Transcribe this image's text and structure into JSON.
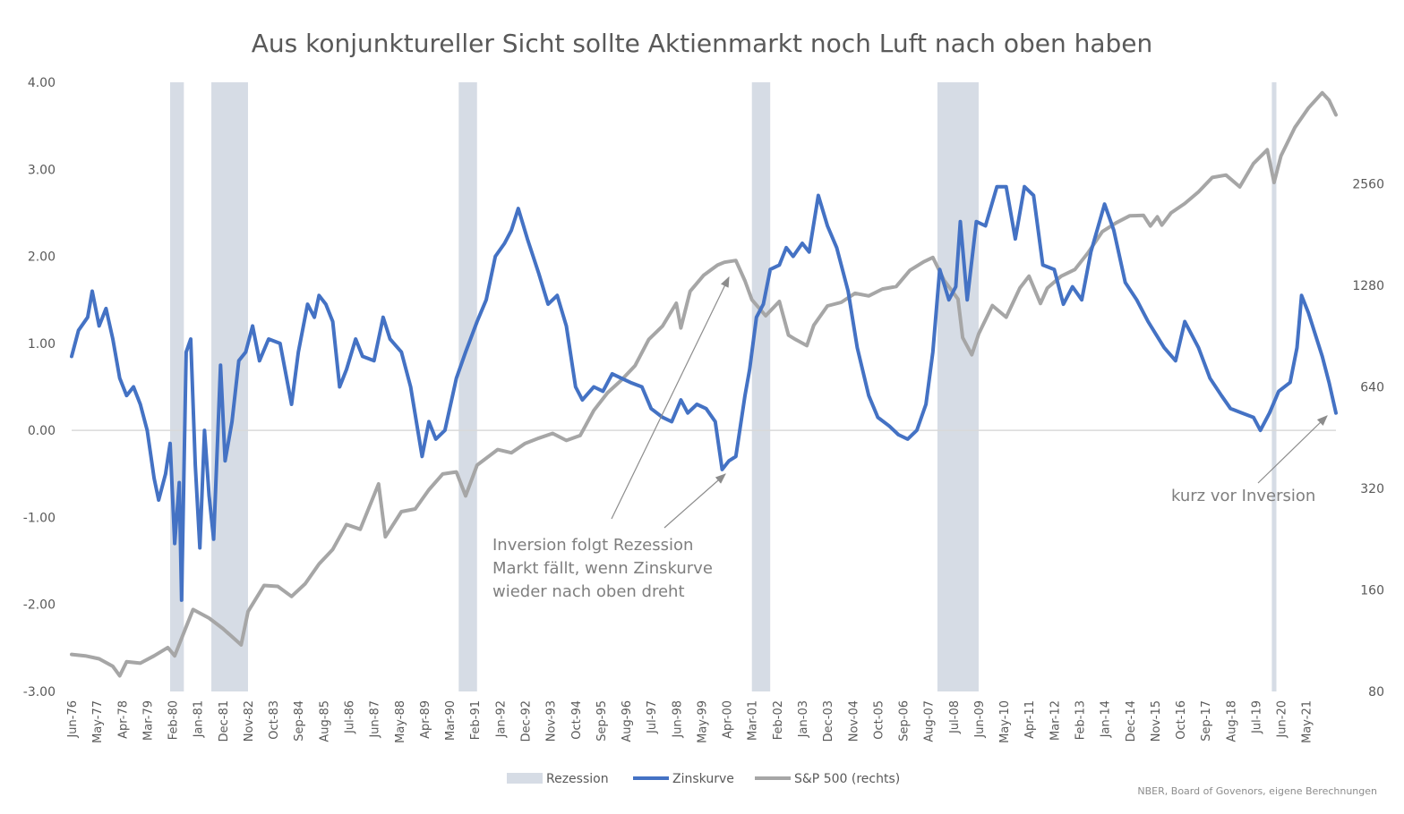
{
  "chart_data": {
    "type": "line",
    "title": "Aus konjunktureller Sicht sollte Aktienmarkt noch Luft nach oben haben",
    "source": "NBER, Board of Govenors, eigene Berechnungen",
    "x_range": [
      "1976-06",
      "2022-06"
    ],
    "x_tick_labels": [
      "Jun-76",
      "May-77",
      "Apr-78",
      "Mar-79",
      "Feb-80",
      "Jan-81",
      "Dec-81",
      "Nov-82",
      "Oct-83",
      "Sep-84",
      "Aug-85",
      "Jul-86",
      "Jun-87",
      "May-88",
      "Apr-89",
      "Mar-90",
      "Feb-91",
      "Jan-92",
      "Dec-92",
      "Nov-93",
      "Oct-94",
      "Sep-95",
      "Aug-96",
      "Jul-97",
      "Jun-98",
      "May-99",
      "Apr-00",
      "Mar-01",
      "Feb-02",
      "Jan-03",
      "Dec-03",
      "Nov-04",
      "Oct-05",
      "Sep-06",
      "Aug-07",
      "Jul-08",
      "Jun-09",
      "May-10",
      "Apr-11",
      "Mar-12",
      "Feb-13",
      "Jan-14",
      "Dec-14",
      "Nov-15",
      "Oct-16",
      "Sep-17",
      "Aug-18",
      "Jul-19",
      "Jun-20",
      "May-21"
    ],
    "y_left": {
      "ylim": [
        -3,
        4
      ],
      "ticks": [
        "-3.00",
        "-2.00",
        "-1.00",
        "0.00",
        "1.00",
        "2.00",
        "3.00",
        "4.00"
      ]
    },
    "y_right": {
      "scale": "log",
      "ylim": [
        80,
        5120
      ],
      "ticks": [
        "80",
        "160",
        "320",
        "640",
        "1280",
        "2560"
      ]
    },
    "grid": false,
    "legend_position": "bottom",
    "recessions": [
      {
        "name": "Rezession",
        "start": "1980-01",
        "end": "1980-07"
      },
      {
        "name": "Rezession",
        "start": "1981-07",
        "end": "1982-11"
      },
      {
        "name": "Rezession",
        "start": "1990-07",
        "end": "1991-03"
      },
      {
        "name": "Rezession",
        "start": "2001-03",
        "end": "2001-11"
      },
      {
        "name": "Rezession",
        "start": "2007-12",
        "end": "2009-06"
      },
      {
        "name": "Rezession",
        "start": "2020-02",
        "end": "2020-04"
      }
    ],
    "series": [
      {
        "name": "Zinskurve",
        "axis": "left",
        "color": "#4472c4",
        "points": [
          [
            "1976-06",
            0.85
          ],
          [
            "1976-09",
            1.15
          ],
          [
            "1977-01",
            1.3
          ],
          [
            "1977-03",
            1.6
          ],
          [
            "1977-06",
            1.2
          ],
          [
            "1977-09",
            1.4
          ],
          [
            "1977-12",
            1.05
          ],
          [
            "1978-03",
            0.6
          ],
          [
            "1978-06",
            0.4
          ],
          [
            "1978-09",
            0.5
          ],
          [
            "1978-12",
            0.3
          ],
          [
            "1979-03",
            0.0
          ],
          [
            "1979-06",
            -0.55
          ],
          [
            "1979-08",
            -0.8
          ],
          [
            "1979-11",
            -0.5
          ],
          [
            "1980-01",
            -0.15
          ],
          [
            "1980-03",
            -1.3
          ],
          [
            "1980-05",
            -0.6
          ],
          [
            "1980-06",
            -1.95
          ],
          [
            "1980-08",
            0.9
          ],
          [
            "1980-10",
            1.05
          ],
          [
            "1980-12",
            -0.4
          ],
          [
            "1981-02",
            -1.35
          ],
          [
            "1981-04",
            0.0
          ],
          [
            "1981-06",
            -0.75
          ],
          [
            "1981-08",
            -1.25
          ],
          [
            "1981-11",
            0.75
          ],
          [
            "1982-01",
            -0.35
          ],
          [
            "1982-04",
            0.1
          ],
          [
            "1982-07",
            0.8
          ],
          [
            "1982-10",
            0.9
          ],
          [
            "1983-01",
            1.2
          ],
          [
            "1983-04",
            0.8
          ],
          [
            "1983-08",
            1.05
          ],
          [
            "1984-01",
            1.0
          ],
          [
            "1984-06",
            0.3
          ],
          [
            "1984-09",
            0.9
          ],
          [
            "1985-01",
            1.45
          ],
          [
            "1985-04",
            1.3
          ],
          [
            "1985-06",
            1.55
          ],
          [
            "1985-09",
            1.45
          ],
          [
            "1985-12",
            1.25
          ],
          [
            "1986-03",
            0.5
          ],
          [
            "1986-06",
            0.7
          ],
          [
            "1986-10",
            1.05
          ],
          [
            "1987-01",
            0.85
          ],
          [
            "1987-06",
            0.8
          ],
          [
            "1987-10",
            1.3
          ],
          [
            "1988-01",
            1.05
          ],
          [
            "1988-06",
            0.9
          ],
          [
            "1988-10",
            0.5
          ],
          [
            "1989-03",
            -0.3
          ],
          [
            "1989-06",
            0.1
          ],
          [
            "1989-09",
            -0.1
          ],
          [
            "1990-01",
            0.0
          ],
          [
            "1990-06",
            0.6
          ],
          [
            "1990-10",
            0.9
          ],
          [
            "1991-03",
            1.25
          ],
          [
            "1991-07",
            1.5
          ],
          [
            "1991-11",
            2.0
          ],
          [
            "1992-03",
            2.15
          ],
          [
            "1992-06",
            2.3
          ],
          [
            "1992-09",
            2.55
          ],
          [
            "1993-01",
            2.2
          ],
          [
            "1993-06",
            1.8
          ],
          [
            "1993-10",
            1.45
          ],
          [
            "1994-02",
            1.55
          ],
          [
            "1994-06",
            1.2
          ],
          [
            "1994-10",
            0.5
          ],
          [
            "1995-01",
            0.35
          ],
          [
            "1995-06",
            0.5
          ],
          [
            "1995-10",
            0.45
          ],
          [
            "1996-02",
            0.65
          ],
          [
            "1996-06",
            0.6
          ],
          [
            "1996-10",
            0.55
          ],
          [
            "1997-03",
            0.5
          ],
          [
            "1997-07",
            0.25
          ],
          [
            "1997-12",
            0.15
          ],
          [
            "1998-04",
            0.1
          ],
          [
            "1998-08",
            0.35
          ],
          [
            "1998-11",
            0.2
          ],
          [
            "1999-03",
            0.3
          ],
          [
            "1999-07",
            0.25
          ],
          [
            "1999-11",
            0.1
          ],
          [
            "2000-02",
            -0.45
          ],
          [
            "2000-05",
            -0.35
          ],
          [
            "2000-08",
            -0.3
          ],
          [
            "2000-12",
            0.4
          ],
          [
            "2001-02",
            0.7
          ],
          [
            "2001-05",
            1.3
          ],
          [
            "2001-08",
            1.45
          ],
          [
            "2001-11",
            1.85
          ],
          [
            "2002-03",
            1.9
          ],
          [
            "2002-06",
            2.1
          ],
          [
            "2002-09",
            2.0
          ],
          [
            "2003-01",
            2.15
          ],
          [
            "2003-04",
            2.05
          ],
          [
            "2003-08",
            2.7
          ],
          [
            "2003-12",
            2.35
          ],
          [
            "2004-04",
            2.1
          ],
          [
            "2004-09",
            1.6
          ],
          [
            "2005-01",
            0.95
          ],
          [
            "2005-06",
            0.4
          ],
          [
            "2005-10",
            0.15
          ],
          [
            "2006-03",
            0.05
          ],
          [
            "2006-07",
            -0.05
          ],
          [
            "2006-11",
            -0.1
          ],
          [
            "2007-03",
            0.0
          ],
          [
            "2007-07",
            0.3
          ],
          [
            "2007-10",
            0.9
          ],
          [
            "2008-01",
            1.85
          ],
          [
            "2008-05",
            1.5
          ],
          [
            "2008-08",
            1.65
          ],
          [
            "2008-10",
            2.4
          ],
          [
            "2009-01",
            1.5
          ],
          [
            "2009-05",
            2.4
          ],
          [
            "2009-09",
            2.35
          ],
          [
            "2010-02",
            2.8
          ],
          [
            "2010-06",
            2.8
          ],
          [
            "2010-10",
            2.2
          ],
          [
            "2011-02",
            2.8
          ],
          [
            "2011-06",
            2.7
          ],
          [
            "2011-10",
            1.9
          ],
          [
            "2012-03",
            1.85
          ],
          [
            "2012-07",
            1.45
          ],
          [
            "2012-11",
            1.65
          ],
          [
            "2013-03",
            1.5
          ],
          [
            "2013-07",
            2.05
          ],
          [
            "2014-01",
            2.6
          ],
          [
            "2014-05",
            2.3
          ],
          [
            "2014-10",
            1.7
          ],
          [
            "2015-03",
            1.5
          ],
          [
            "2015-08",
            1.25
          ],
          [
            "2016-03",
            0.95
          ],
          [
            "2016-08",
            0.8
          ],
          [
            "2016-12",
            1.25
          ],
          [
            "2017-06",
            0.95
          ],
          [
            "2017-11",
            0.6
          ],
          [
            "2018-04",
            0.4
          ],
          [
            "2018-08",
            0.25
          ],
          [
            "2019-01",
            0.2
          ],
          [
            "2019-06",
            0.15
          ],
          [
            "2019-09",
            0.0
          ],
          [
            "2020-01",
            0.2
          ],
          [
            "2020-05",
            0.45
          ],
          [
            "2020-10",
            0.55
          ],
          [
            "2021-01",
            0.95
          ],
          [
            "2021-03",
            1.55
          ],
          [
            "2021-06",
            1.35
          ],
          [
            "2021-09",
            1.1
          ],
          [
            "2021-12",
            0.85
          ],
          [
            "2022-03",
            0.55
          ],
          [
            "2022-06",
            0.2
          ]
        ]
      },
      {
        "name": "S&P 500 (rechts)",
        "axis": "right",
        "color": "#a6a6a6",
        "points": [
          [
            "1976-06",
            103
          ],
          [
            "1976-12",
            102
          ],
          [
            "1977-06",
            100
          ],
          [
            "1977-12",
            95
          ],
          [
            "1978-03",
            89
          ],
          [
            "1978-06",
            98
          ],
          [
            "1978-12",
            97
          ],
          [
            "1979-06",
            102
          ],
          [
            "1979-12",
            108
          ],
          [
            "1980-03",
            102
          ],
          [
            "1980-06",
            115
          ],
          [
            "1980-11",
            140
          ],
          [
            "1981-06",
            132
          ],
          [
            "1981-12",
            123
          ],
          [
            "1982-08",
            110
          ],
          [
            "1982-11",
            138
          ],
          [
            "1983-06",
            165
          ],
          [
            "1983-12",
            164
          ],
          [
            "1984-06",
            153
          ],
          [
            "1984-12",
            167
          ],
          [
            "1985-06",
            191
          ],
          [
            "1985-12",
            211
          ],
          [
            "1986-06",
            250
          ],
          [
            "1986-12",
            242
          ],
          [
            "1987-08",
            330
          ],
          [
            "1987-11",
            230
          ],
          [
            "1988-06",
            273
          ],
          [
            "1988-12",
            278
          ],
          [
            "1989-06",
            317
          ],
          [
            "1989-12",
            353
          ],
          [
            "1990-06",
            358
          ],
          [
            "1990-10",
            304
          ],
          [
            "1991-03",
            375
          ],
          [
            "1991-12",
            417
          ],
          [
            "1992-06",
            408
          ],
          [
            "1992-12",
            435
          ],
          [
            "1993-06",
            451
          ],
          [
            "1993-12",
            466
          ],
          [
            "1994-06",
            444
          ],
          [
            "1994-12",
            459
          ],
          [
            "1995-06",
            545
          ],
          [
            "1995-12",
            615
          ],
          [
            "1996-06",
            670
          ],
          [
            "1996-12",
            740
          ],
          [
            "1997-06",
            885
          ],
          [
            "1997-12",
            970
          ],
          [
            "1998-06",
            1133
          ],
          [
            "1998-08",
            957
          ],
          [
            "1998-12",
            1229
          ],
          [
            "1999-06",
            1372
          ],
          [
            "1999-12",
            1469
          ],
          [
            "2000-03",
            1498
          ],
          [
            "2000-08",
            1517
          ],
          [
            "2000-12",
            1320
          ],
          [
            "2001-03",
            1160
          ],
          [
            "2001-09",
            1040
          ],
          [
            "2002-03",
            1147
          ],
          [
            "2002-07",
            911
          ],
          [
            "2002-10",
            885
          ],
          [
            "2003-03",
            848
          ],
          [
            "2003-06",
            974
          ],
          [
            "2003-12",
            1112
          ],
          [
            "2004-06",
            1140
          ],
          [
            "2004-12",
            1212
          ],
          [
            "2005-06",
            1191
          ],
          [
            "2005-12",
            1248
          ],
          [
            "2006-06",
            1270
          ],
          [
            "2006-12",
            1418
          ],
          [
            "2007-06",
            1503
          ],
          [
            "2007-10",
            1549
          ],
          [
            "2008-03",
            1322
          ],
          [
            "2008-09",
            1166
          ],
          [
            "2008-11",
            896
          ],
          [
            "2009-03",
            797
          ],
          [
            "2009-06",
            919
          ],
          [
            "2009-12",
            1115
          ],
          [
            "2010-06",
            1030
          ],
          [
            "2010-12",
            1257
          ],
          [
            "2011-04",
            1363
          ],
          [
            "2011-09",
            1131
          ],
          [
            "2011-12",
            1257
          ],
          [
            "2012-06",
            1362
          ],
          [
            "2012-12",
            1426
          ],
          [
            "2013-06",
            1606
          ],
          [
            "2013-12",
            1848
          ],
          [
            "2014-06",
            1960
          ],
          [
            "2014-12",
            2058
          ],
          [
            "2015-06",
            2063
          ],
          [
            "2015-09",
            1920
          ],
          [
            "2015-12",
            2043
          ],
          [
            "2016-02",
            1932
          ],
          [
            "2016-06",
            2099
          ],
          [
            "2016-12",
            2238
          ],
          [
            "2017-06",
            2423
          ],
          [
            "2017-12",
            2673
          ],
          [
            "2018-06",
            2718
          ],
          [
            "2018-12",
            2507
          ],
          [
            "2019-06",
            2941
          ],
          [
            "2019-12",
            3230
          ],
          [
            "2020-03",
            2584
          ],
          [
            "2020-06",
            3100
          ],
          [
            "2020-12",
            3756
          ],
          [
            "2021-06",
            4297
          ],
          [
            "2021-12",
            4766
          ],
          [
            "2022-03",
            4530
          ],
          [
            "2022-06",
            4100
          ]
        ]
      }
    ],
    "annotations": [
      {
        "lines": [
          "Inversion folgt Rezession",
          "Markt fällt, wenn Zinskurve",
          "wieder nach oben dreht"
        ]
      },
      {
        "lines": [
          "kurz vor Inversion"
        ]
      }
    ],
    "legend": [
      {
        "label": "Rezession",
        "color": "#d6dce5"
      },
      {
        "label": "Zinskurve",
        "color": "#4472c4"
      },
      {
        "label": "S&P 500 (rechts)",
        "color": "#a6a6a6"
      }
    ]
  }
}
